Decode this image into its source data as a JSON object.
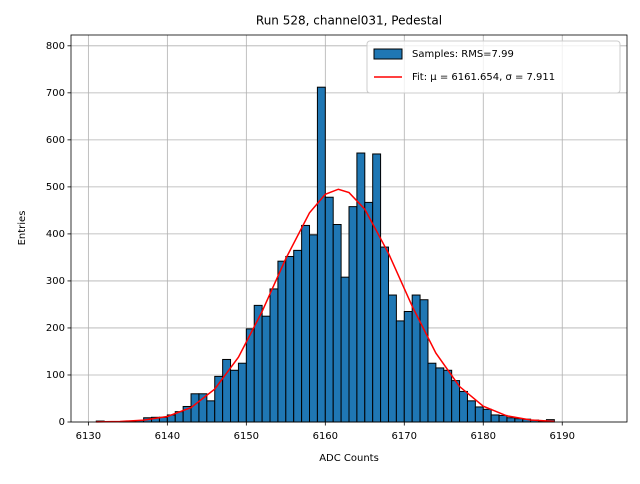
{
  "chart_data": {
    "type": "histogram",
    "title": "Run 528, channel031, Pedestal",
    "x_label": "ADC Counts",
    "y_label": "Entries",
    "bins": [
      6131,
      6132,
      6133,
      6134,
      6135,
      6136,
      6137,
      6138,
      6139,
      6140,
      6141,
      6142,
      6143,
      6144,
      6145,
      6146,
      6147,
      6148,
      6149,
      6150,
      6151,
      6152,
      6153,
      6154,
      6155,
      6156,
      6157,
      6158,
      6159,
      6160,
      6161,
      6162,
      6163,
      6164,
      6165,
      6166,
      6167,
      6168,
      6169,
      6170,
      6171,
      6172,
      6173,
      6174,
      6175,
      6176,
      6177,
      6178,
      6179,
      6180,
      6181,
      6182,
      6183,
      6184,
      6185,
      6186,
      6187,
      6188,
      6189
    ],
    "series": [
      {
        "name": "Samples: RMS=7.99",
        "color": "#1f77b4",
        "values": [
          2,
          0,
          0,
          1,
          1,
          3,
          9,
          10,
          10,
          15,
          22,
          33,
          60,
          60,
          45,
          97,
          133,
          110,
          125,
          198,
          248,
          225,
          283,
          342,
          352,
          365,
          418,
          398,
          712,
          478,
          420,
          308,
          458,
          572,
          467,
          570,
          372,
          270,
          215,
          235,
          270,
          260,
          125,
          115,
          110,
          88,
          65,
          45,
          32,
          27,
          15,
          14,
          9,
          7,
          6,
          4,
          2,
          5
        ]
      },
      {
        "name": "Fit: μ = 6161.654, σ = 7.911",
        "type": "line",
        "color": "#ff0000",
        "x": [
          6131,
          6134,
          6137,
          6140,
          6143,
          6146,
          6149,
          6152,
          6155,
          6158,
          6160,
          6161.654,
          6163,
          6165,
          6168,
          6171,
          6174,
          6177,
          6180,
          6183,
          6186,
          6189
        ],
        "values": [
          0.27,
          1.1,
          3.9,
          11.7,
          30.7,
          69.9,
          137.8,
          235.1,
          347.5,
          444.9,
          484.3,
          495,
          487.9,
          452.6,
          358.8,
          246.3,
          146.5,
          75.4,
          33.6,
          13.0,
          4.3,
          1.3
        ]
      }
    ],
    "xlim": [
      6127.8,
      6198.2
    ],
    "xticks": [
      6130,
      6140,
      6150,
      6160,
      6170,
      6180,
      6190
    ],
    "ylim": [
      0,
      823
    ],
    "yticks": [
      0,
      100,
      200,
      300,
      400,
      500,
      600,
      700,
      800
    ],
    "grid": true,
    "legend": "upper right"
  }
}
